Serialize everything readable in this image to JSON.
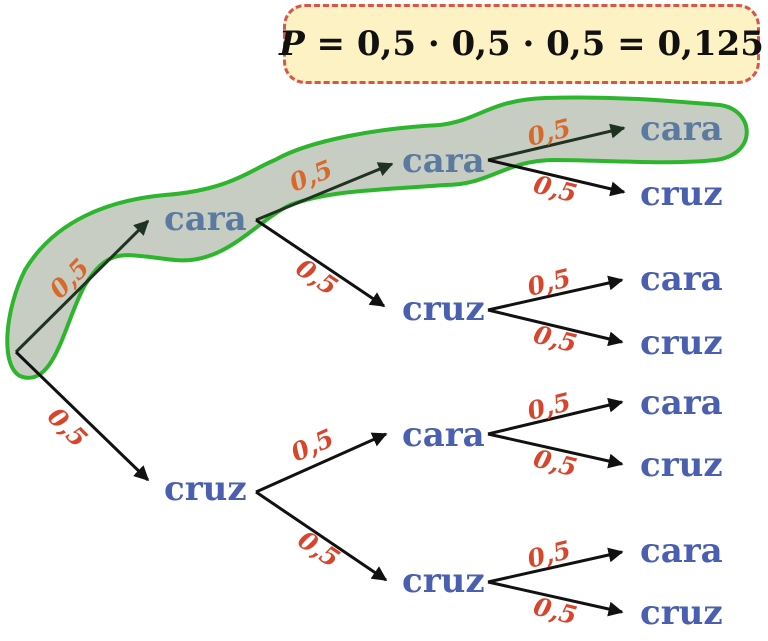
{
  "formula": {
    "symbol": "P",
    "expression": "= 0,5 · 0,5 · 0,5 = 0,125"
  },
  "labels": {
    "heads": "cara",
    "tails": "cruz",
    "probability": "0,5"
  },
  "colors": {
    "node_text": "#4a5fb0",
    "highlighted_node_text": "#5a7aa0",
    "probability_text": "#d9452b",
    "highlight_outline": "#2db52d",
    "highlight_fill": "#c8cdc4",
    "formula_box_fill": "#fdf2c4",
    "formula_box_border": "#d9534f"
  },
  "tree": {
    "levels": 3,
    "branching": 2,
    "highlighted_path": [
      "cara",
      "cara",
      "cara"
    ]
  }
}
